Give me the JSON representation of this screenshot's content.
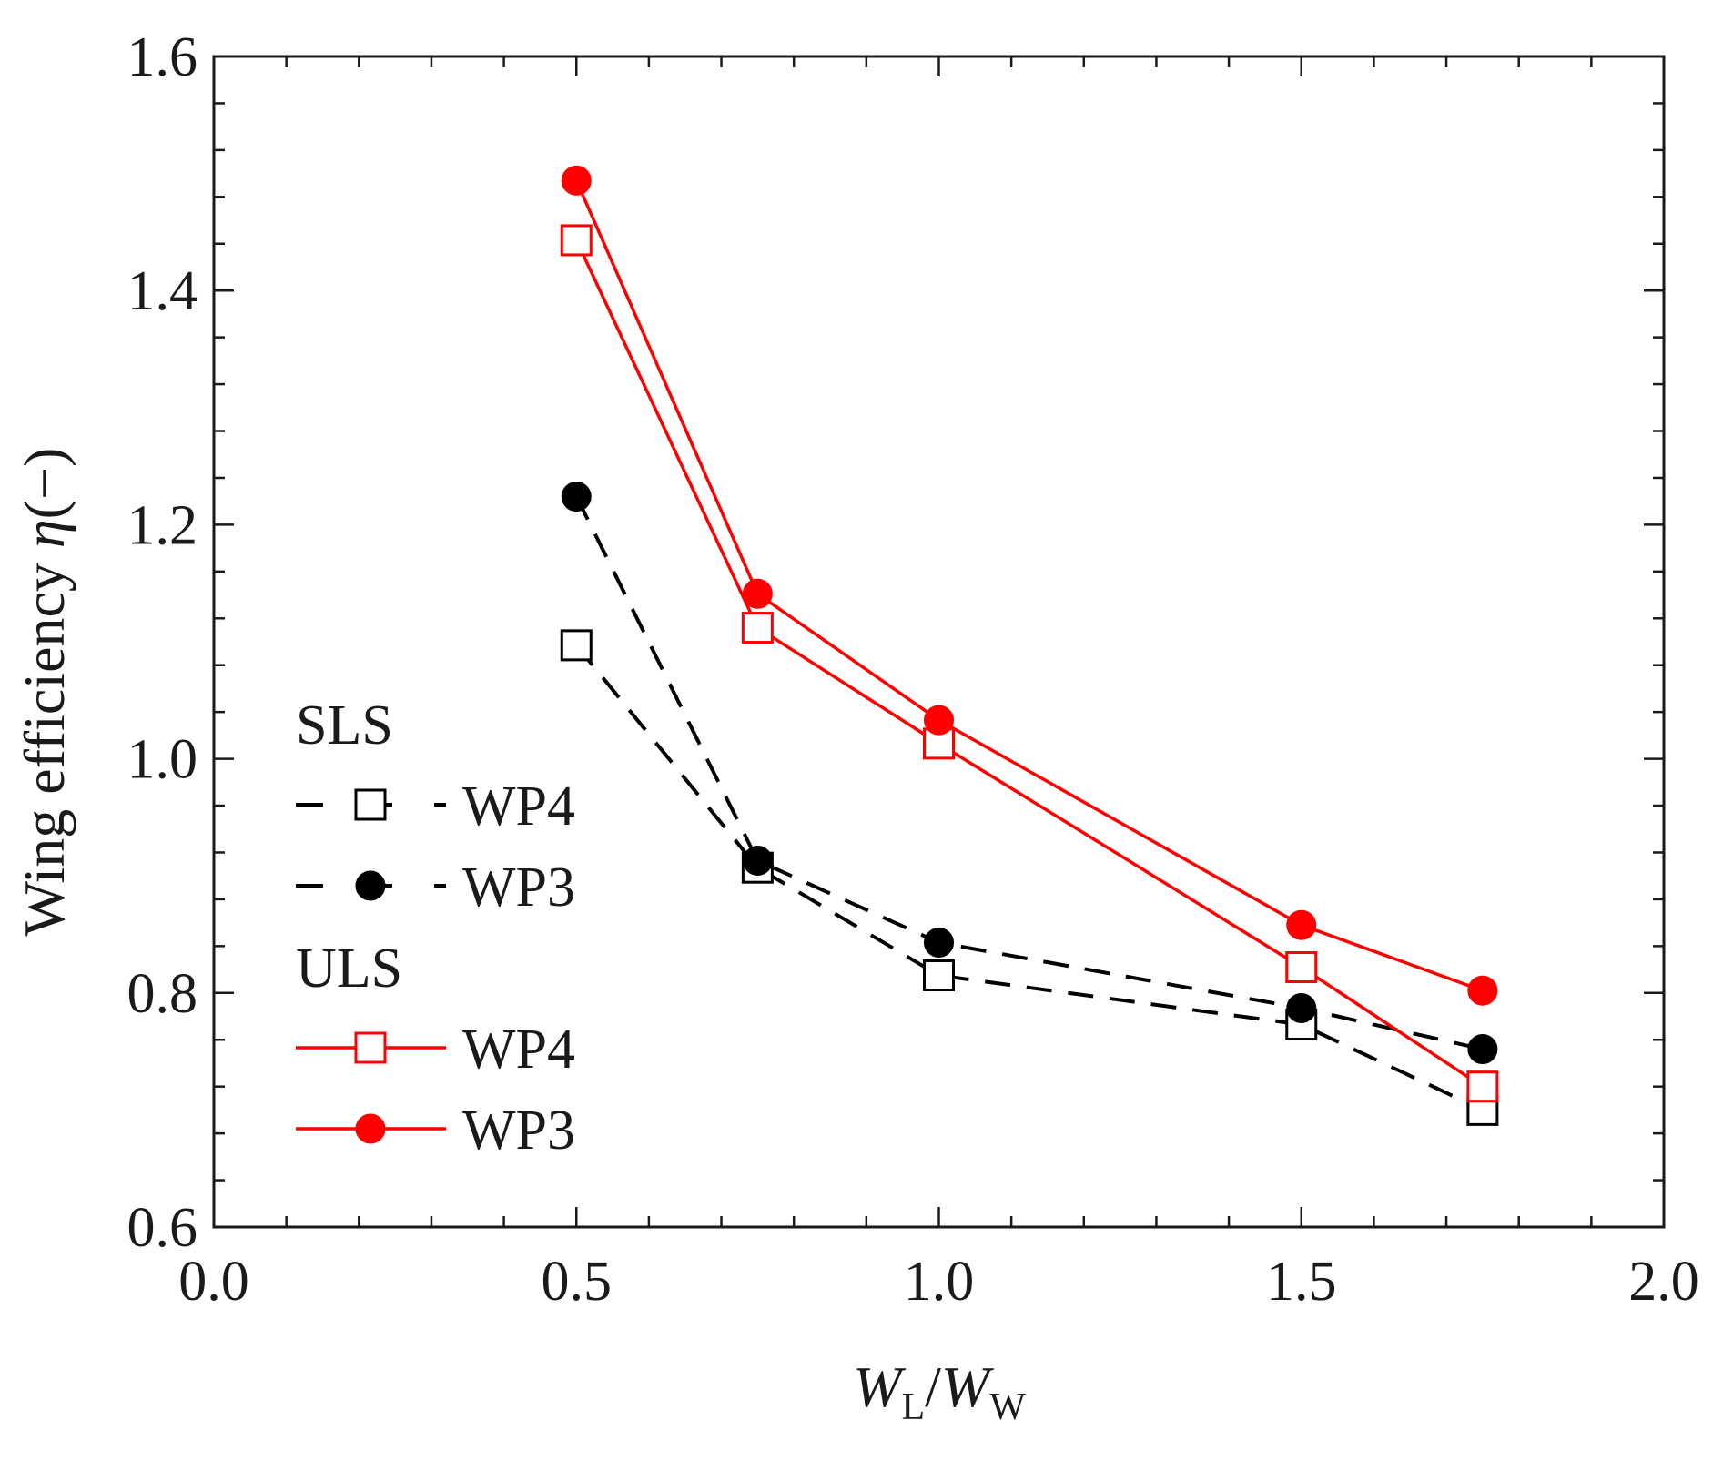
{
  "chart_data": {
    "type": "line",
    "title": "",
    "xlabel": "W_L/W_W",
    "xlabel_parts": {
      "w1": "W",
      "sub1": "L",
      "slash": "/",
      "w2": "W",
      "sub2": "W"
    },
    "ylabel": "Wing efficiency η (−)",
    "ylabel_parts": {
      "text": "Wing efficiency ",
      "symbol": "η",
      "unit": "(−)"
    },
    "xlim": [
      0.0,
      2.0
    ],
    "ylim": [
      0.6,
      1.6
    ],
    "x_ticks": [
      "0.0",
      "0.5",
      "1.0",
      "1.5",
      "2.0"
    ],
    "y_ticks": [
      "0.6",
      "0.8",
      "1.0",
      "1.2",
      "1.4",
      "1.6"
    ],
    "grid": false,
    "x": [
      0.5,
      0.75,
      1.0,
      1.5,
      1.75
    ],
    "series": [
      {
        "name": "WP4",
        "group": "SLS",
        "color": "#000000",
        "line": "dashed",
        "marker": "open-square",
        "values": [
          1.097,
          0.907,
          0.815,
          0.773,
          0.7
        ]
      },
      {
        "name": "WP3",
        "group": "SLS",
        "color": "#000000",
        "line": "dashed",
        "marker": "filled-circle",
        "values": [
          1.224,
          0.913,
          0.843,
          0.787,
          0.752
        ]
      },
      {
        "name": "WP4",
        "group": "ULS",
        "color": "#ff0000",
        "line": "solid",
        "marker": "open-square",
        "values": [
          1.443,
          1.112,
          1.013,
          0.822,
          0.72
        ]
      },
      {
        "name": "WP3",
        "group": "ULS",
        "color": "#ff0000",
        "line": "solid",
        "marker": "filled-circle",
        "values": [
          1.494,
          1.141,
          1.033,
          0.858,
          0.802
        ]
      }
    ],
    "legend": {
      "location": "left",
      "groups": [
        {
          "title": "SLS",
          "entries": [
            "WP4",
            "WP3"
          ]
        },
        {
          "title": "ULS",
          "entries": [
            "WP4",
            "WP3"
          ]
        }
      ]
    }
  }
}
